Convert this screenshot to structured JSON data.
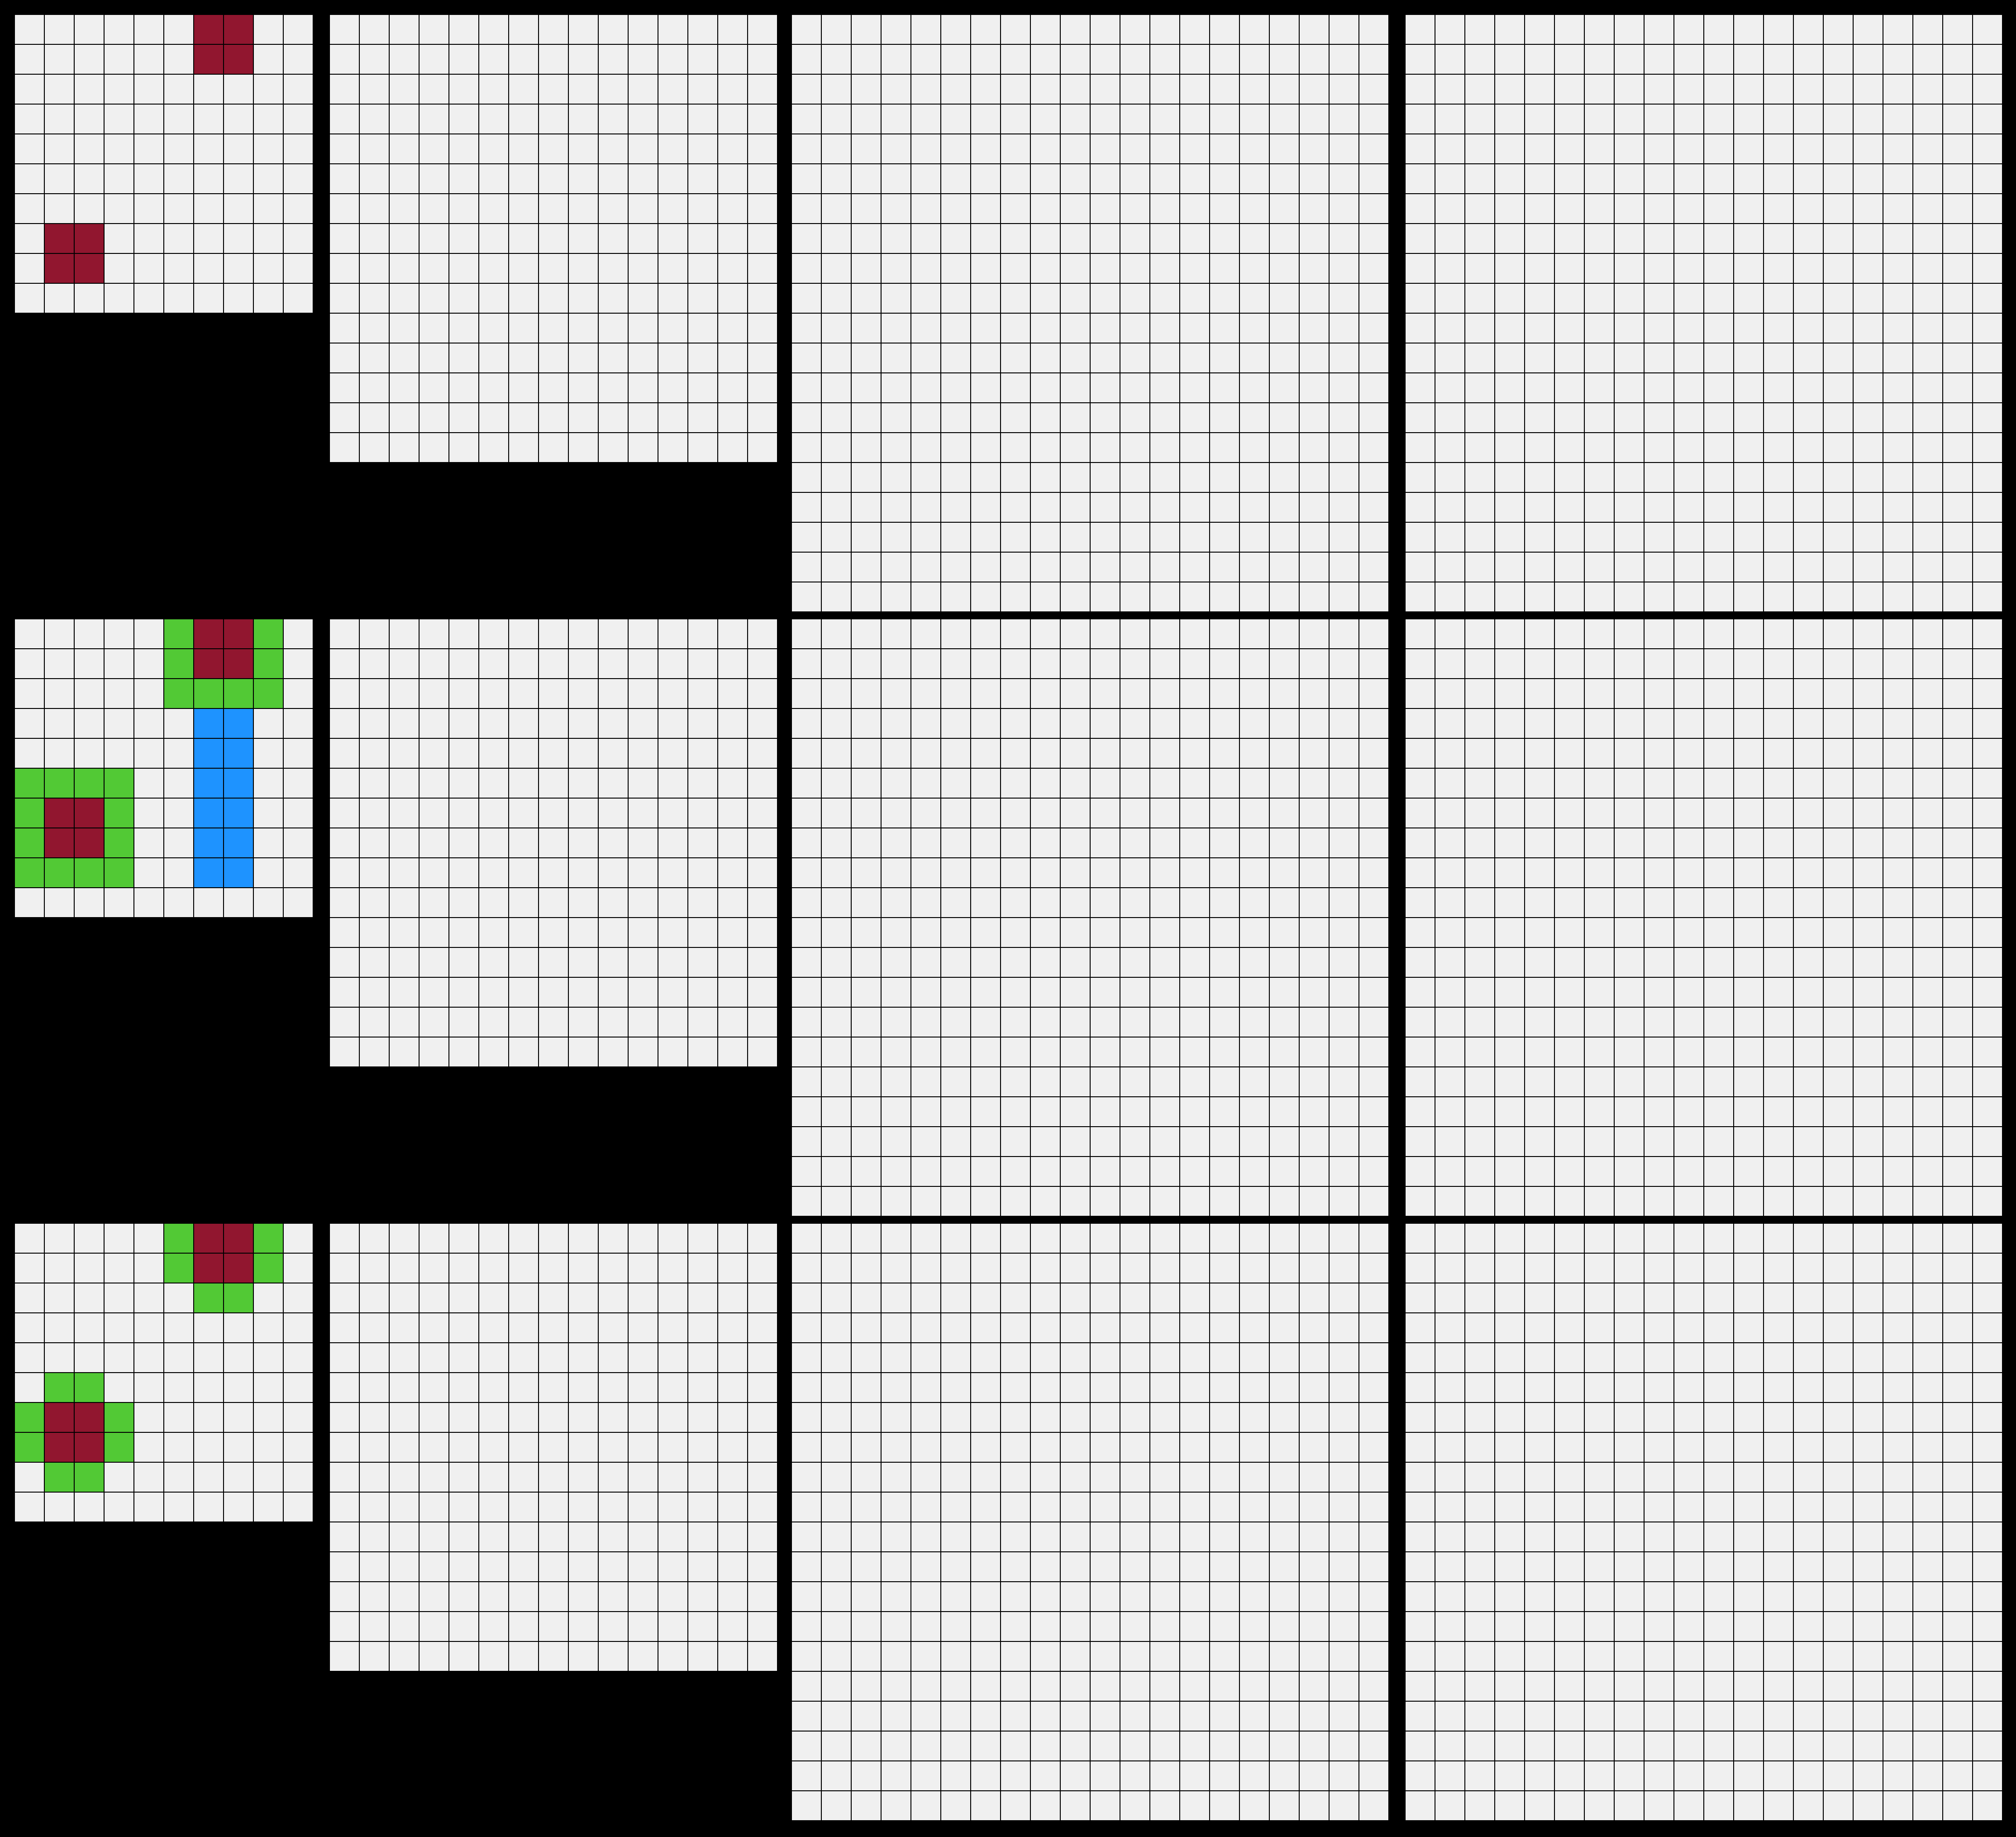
{
  "palette": {
    "0": "#f0f0f0",
    "1": "#91162f",
    "2": "#52c935",
    "3": "#1e93ff",
    "background": "#000000"
  },
  "rows": [
    {
      "role": "input",
      "panels": [
        [
          "0000001100",
          "0000001100",
          "0000000000",
          "0000000000",
          "0000000000",
          "0000000000",
          "0000000000",
          "0110000000",
          "0110000000",
          "0000000000"
        ],
        [
          "000000000000000",
          "000000000000000",
          "000000000000000",
          "000000000000000",
          "000000000000000",
          "000000000000000",
          "000000000000000",
          "000000000000000",
          "000000000000000",
          "000000000000000",
          "000000000000000",
          "000000000000000",
          "000000000000000",
          "000000000000000",
          "000000000000000"
        ],
        [
          "00000000000000000000",
          "00000000000000000000",
          "00000000000000000000",
          "00000000000000000000",
          "00000000000000000000",
          "00000000000000000000",
          "00000000000000000000",
          "00000000000000000000",
          "00000000000000000000",
          "00000000000000000000",
          "00000000000000000000",
          "00000000000000000000",
          "00000000000000000000",
          "00000000000000000000",
          "00000000000000000000",
          "00000000000000000000",
          "00000000000000000000",
          "00000000000000000000",
          "00000000000000000000",
          "00000000000000000000"
        ],
        [
          "00000000000000000000",
          "00000000000000000000",
          "00000000000000000000",
          "00000000000000000000",
          "00000000000000000000",
          "00000000000000000000",
          "00000000000000000000",
          "00000000000000000000",
          "00000000000000000000",
          "00000000000000000000",
          "00000000000000000000",
          "00000000000000000000",
          "00000000000000000000",
          "00000000000000000000",
          "00000000000000000000",
          "00000000000000000000",
          "00000000000000000000",
          "00000000000000000000",
          "00000000000000000000",
          "00000000000000000000"
        ]
      ]
    },
    {
      "role": "output",
      "panels": [
        [
          "0000021120",
          "0000021120",
          "0000022220",
          "0000003300",
          "0000003300",
          "2222003300",
          "2112003300",
          "2112003300",
          "2222003300",
          "0000000000"
        ],
        [
          "000000000000000",
          "000000000000000",
          "000000000000000",
          "000000000000000",
          "000000000000000",
          "000000000000000",
          "000000000000000",
          "000000000000000",
          "000000000000000",
          "000000000000000",
          "000000000000000",
          "000000000000000",
          "000000000000000",
          "000000000000000",
          "000000000000000"
        ],
        [
          "00000000000000000000",
          "00000000000000000000",
          "00000000000000000000",
          "00000000000000000000",
          "00000000000000000000",
          "00000000000000000000",
          "00000000000000000000",
          "00000000000000000000",
          "00000000000000000000",
          "00000000000000000000",
          "00000000000000000000",
          "00000000000000000000",
          "00000000000000000000",
          "00000000000000000000",
          "00000000000000000000",
          "00000000000000000000",
          "00000000000000000000",
          "00000000000000000000",
          "00000000000000000000",
          "00000000000000000000"
        ],
        [
          "00000000000000000000",
          "00000000000000000000",
          "00000000000000000000",
          "00000000000000000000",
          "00000000000000000000",
          "00000000000000000000",
          "00000000000000000000",
          "00000000000000000000",
          "00000000000000000000",
          "00000000000000000000",
          "00000000000000000000",
          "00000000000000000000",
          "00000000000000000000",
          "00000000000000000000",
          "00000000000000000000",
          "00000000000000000000",
          "00000000000000000000",
          "00000000000000000000",
          "00000000000000000000",
          "00000000000000000000"
        ]
      ]
    },
    {
      "role": "test",
      "panels": [
        [
          "0000021120",
          "0000021120",
          "0000002200",
          "0000000000",
          "0000000000",
          "0220000000",
          "2112000000",
          "2112000000",
          "0220000000",
          "0000000000"
        ],
        [
          "000000000000000",
          "000000000000000",
          "000000000000000",
          "000000000000000",
          "000000000000000",
          "000000000000000",
          "000000000000000",
          "000000000000000",
          "000000000000000",
          "000000000000000",
          "000000000000000",
          "000000000000000",
          "000000000000000",
          "000000000000000",
          "000000000000000"
        ],
        [
          "00000000000000000000",
          "00000000000000000000",
          "00000000000000000000",
          "00000000000000000000",
          "00000000000000000000",
          "00000000000000000000",
          "00000000000000000000",
          "00000000000000000000",
          "00000000000000000000",
          "00000000000000000000",
          "00000000000000000000",
          "00000000000000000000",
          "00000000000000000000",
          "00000000000000000000",
          "00000000000000000000",
          "00000000000000000000",
          "00000000000000000000",
          "00000000000000000000",
          "00000000000000000000",
          "00000000000000000000"
        ],
        [
          "00000000000000000000",
          "00000000000000000000",
          "00000000000000000000",
          "00000000000000000000",
          "00000000000000000000",
          "00000000000000000000",
          "00000000000000000000",
          "00000000000000000000",
          "00000000000000000000",
          "00000000000000000000",
          "00000000000000000000",
          "00000000000000000000",
          "00000000000000000000",
          "00000000000000000000",
          "00000000000000000000",
          "00000000000000000000",
          "00000000000000000000",
          "00000000000000000000",
          "00000000000000000000",
          "00000000000000000000"
        ]
      ]
    }
  ]
}
